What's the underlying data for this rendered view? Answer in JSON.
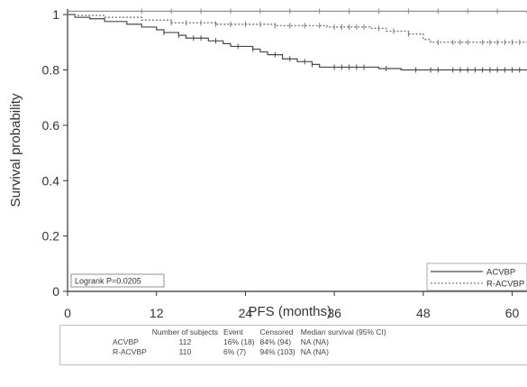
{
  "chart_data": {
    "type": "line",
    "subtype": "kaplan-meier step curve",
    "xlabel": "PFS (months)",
    "ylabel": "Survival probability",
    "xlim": [
      0,
      62
    ],
    "ylim": [
      0,
      1.02
    ],
    "xticks": [
      0,
      12,
      24,
      36,
      48,
      60
    ],
    "yticks": [
      0,
      0.2,
      0.4,
      0.6,
      0.8,
      1
    ],
    "grid": false,
    "legend_position": "bottom-right",
    "annotation": "Logrank P=0.0205",
    "series": [
      {
        "name": "ACVBP",
        "color": "#4a4a4a",
        "style": "solid",
        "points": [
          [
            0,
            1.0
          ],
          [
            1,
            0.99
          ],
          [
            3,
            0.985
          ],
          [
            5,
            0.975
          ],
          [
            8,
            0.965
          ],
          [
            10,
            0.955
          ],
          [
            12,
            0.945
          ],
          [
            13,
            0.935
          ],
          [
            15,
            0.925
          ],
          [
            16,
            0.915
          ],
          [
            19,
            0.905
          ],
          [
            21,
            0.895
          ],
          [
            22,
            0.885
          ],
          [
            25,
            0.875
          ],
          [
            26,
            0.865
          ],
          [
            27,
            0.855
          ],
          [
            29,
            0.84
          ],
          [
            31,
            0.83
          ],
          [
            33,
            0.82
          ],
          [
            34,
            0.81
          ],
          [
            42,
            0.805
          ],
          [
            45,
            0.8
          ],
          [
            62,
            0.8
          ]
        ],
        "censor_x": [
          13,
          15,
          17,
          18,
          20,
          23,
          25,
          28,
          30,
          32,
          33,
          36,
          37,
          38,
          39,
          40,
          43,
          47,
          49,
          50,
          52,
          53,
          54,
          55,
          56,
          57,
          58,
          59,
          60,
          61
        ]
      },
      {
        "name": "R-ACVBP",
        "color": "#7a7a7a",
        "style": "dotted",
        "points": [
          [
            0,
            1.0
          ],
          [
            1,
            0.997
          ],
          [
            5,
            0.99
          ],
          [
            10,
            0.98
          ],
          [
            14,
            0.97
          ],
          [
            20,
            0.965
          ],
          [
            28,
            0.96
          ],
          [
            35,
            0.955
          ],
          [
            41,
            0.95
          ],
          [
            43,
            0.94
          ],
          [
            46,
            0.93
          ],
          [
            48,
            0.91
          ],
          [
            49,
            0.9
          ],
          [
            62,
            0.9
          ]
        ],
        "censor_x": [
          14,
          16,
          18,
          20,
          22,
          24,
          26,
          28,
          30,
          32,
          34,
          36,
          37,
          38,
          39,
          40,
          42,
          44,
          46,
          50,
          52,
          53,
          54,
          56,
          57,
          58,
          59,
          60,
          61
        ]
      },
      {
        "name": "",
        "color": "#8a8a8a",
        "style": "solid",
        "points": [
          [
            0,
            1.012
          ],
          [
            62,
            1.005
          ]
        ],
        "censor_x": [
          10,
          14,
          18,
          22,
          26,
          30,
          34,
          38,
          42,
          46,
          50,
          54,
          58
        ]
      }
    ]
  },
  "summary_table": {
    "headers": [
      "Number of subjects",
      "Event",
      "Censored",
      "Median survival (95% CI)"
    ],
    "rows": [
      {
        "group": "ACVBP",
        "subjects": "112",
        "event": "16% (18)",
        "censored": "84% (94)",
        "median": "NA (NA)"
      },
      {
        "group": "R-ACVBP",
        "subjects": "110",
        "event": "6% (7)",
        "censored": "94% (103)",
        "median": "NA (NA)"
      }
    ]
  }
}
